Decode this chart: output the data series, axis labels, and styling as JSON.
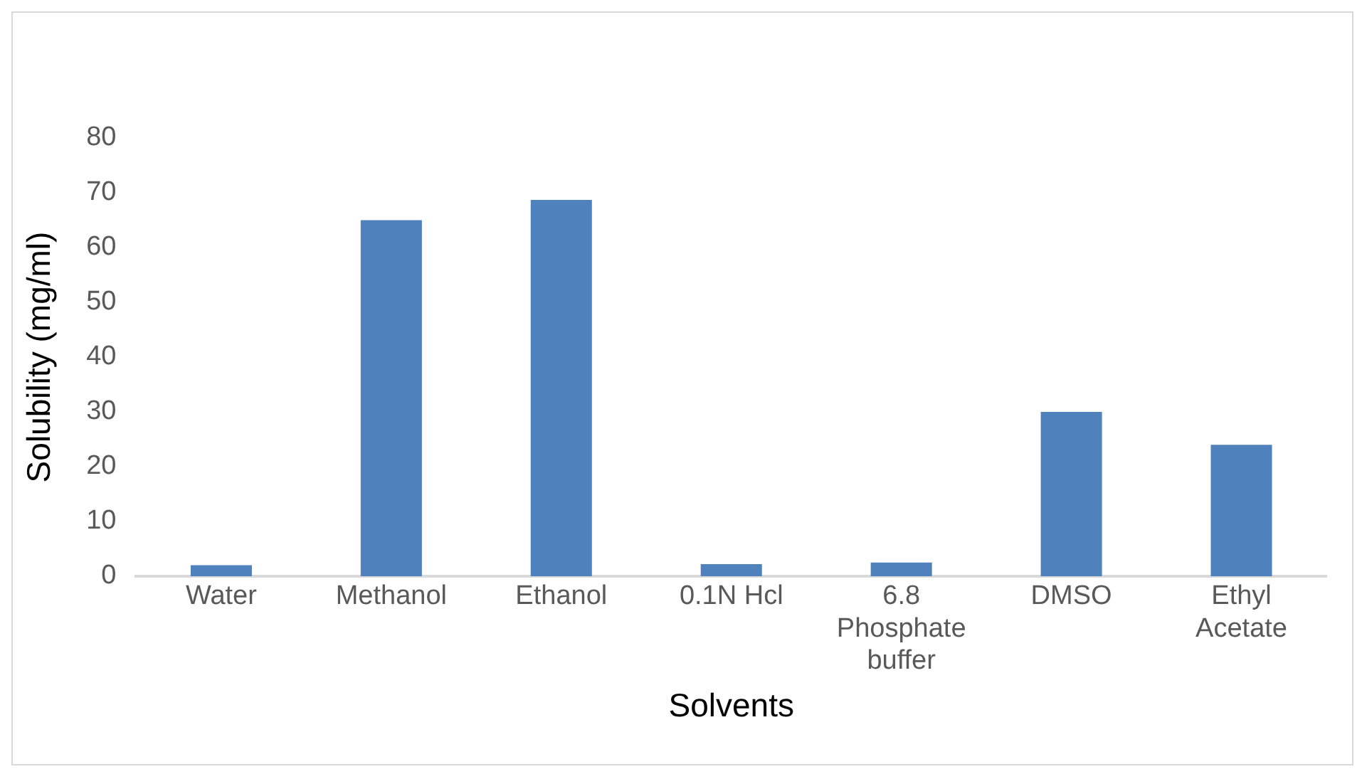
{
  "chart_data": {
    "type": "bar",
    "xlabel": "Solvents",
    "ylabel": "Solubility (mg/ml)",
    "categories": [
      "Water",
      "Methanol",
      "Ethanol",
      "0.1N Hcl",
      "6.8 Phosphate buffer",
      "DMSO",
      "Ethyl Acetate"
    ],
    "values": [
      2.0,
      65,
      68.7,
      2.2,
      2.5,
      30,
      24
    ],
    "color": "#4f81bd",
    "ylim": [
      0,
      80
    ],
    "yticks": [
      0,
      10,
      20,
      30,
      40,
      50,
      60,
      70,
      80
    ],
    "grid": false,
    "legend": false
  }
}
